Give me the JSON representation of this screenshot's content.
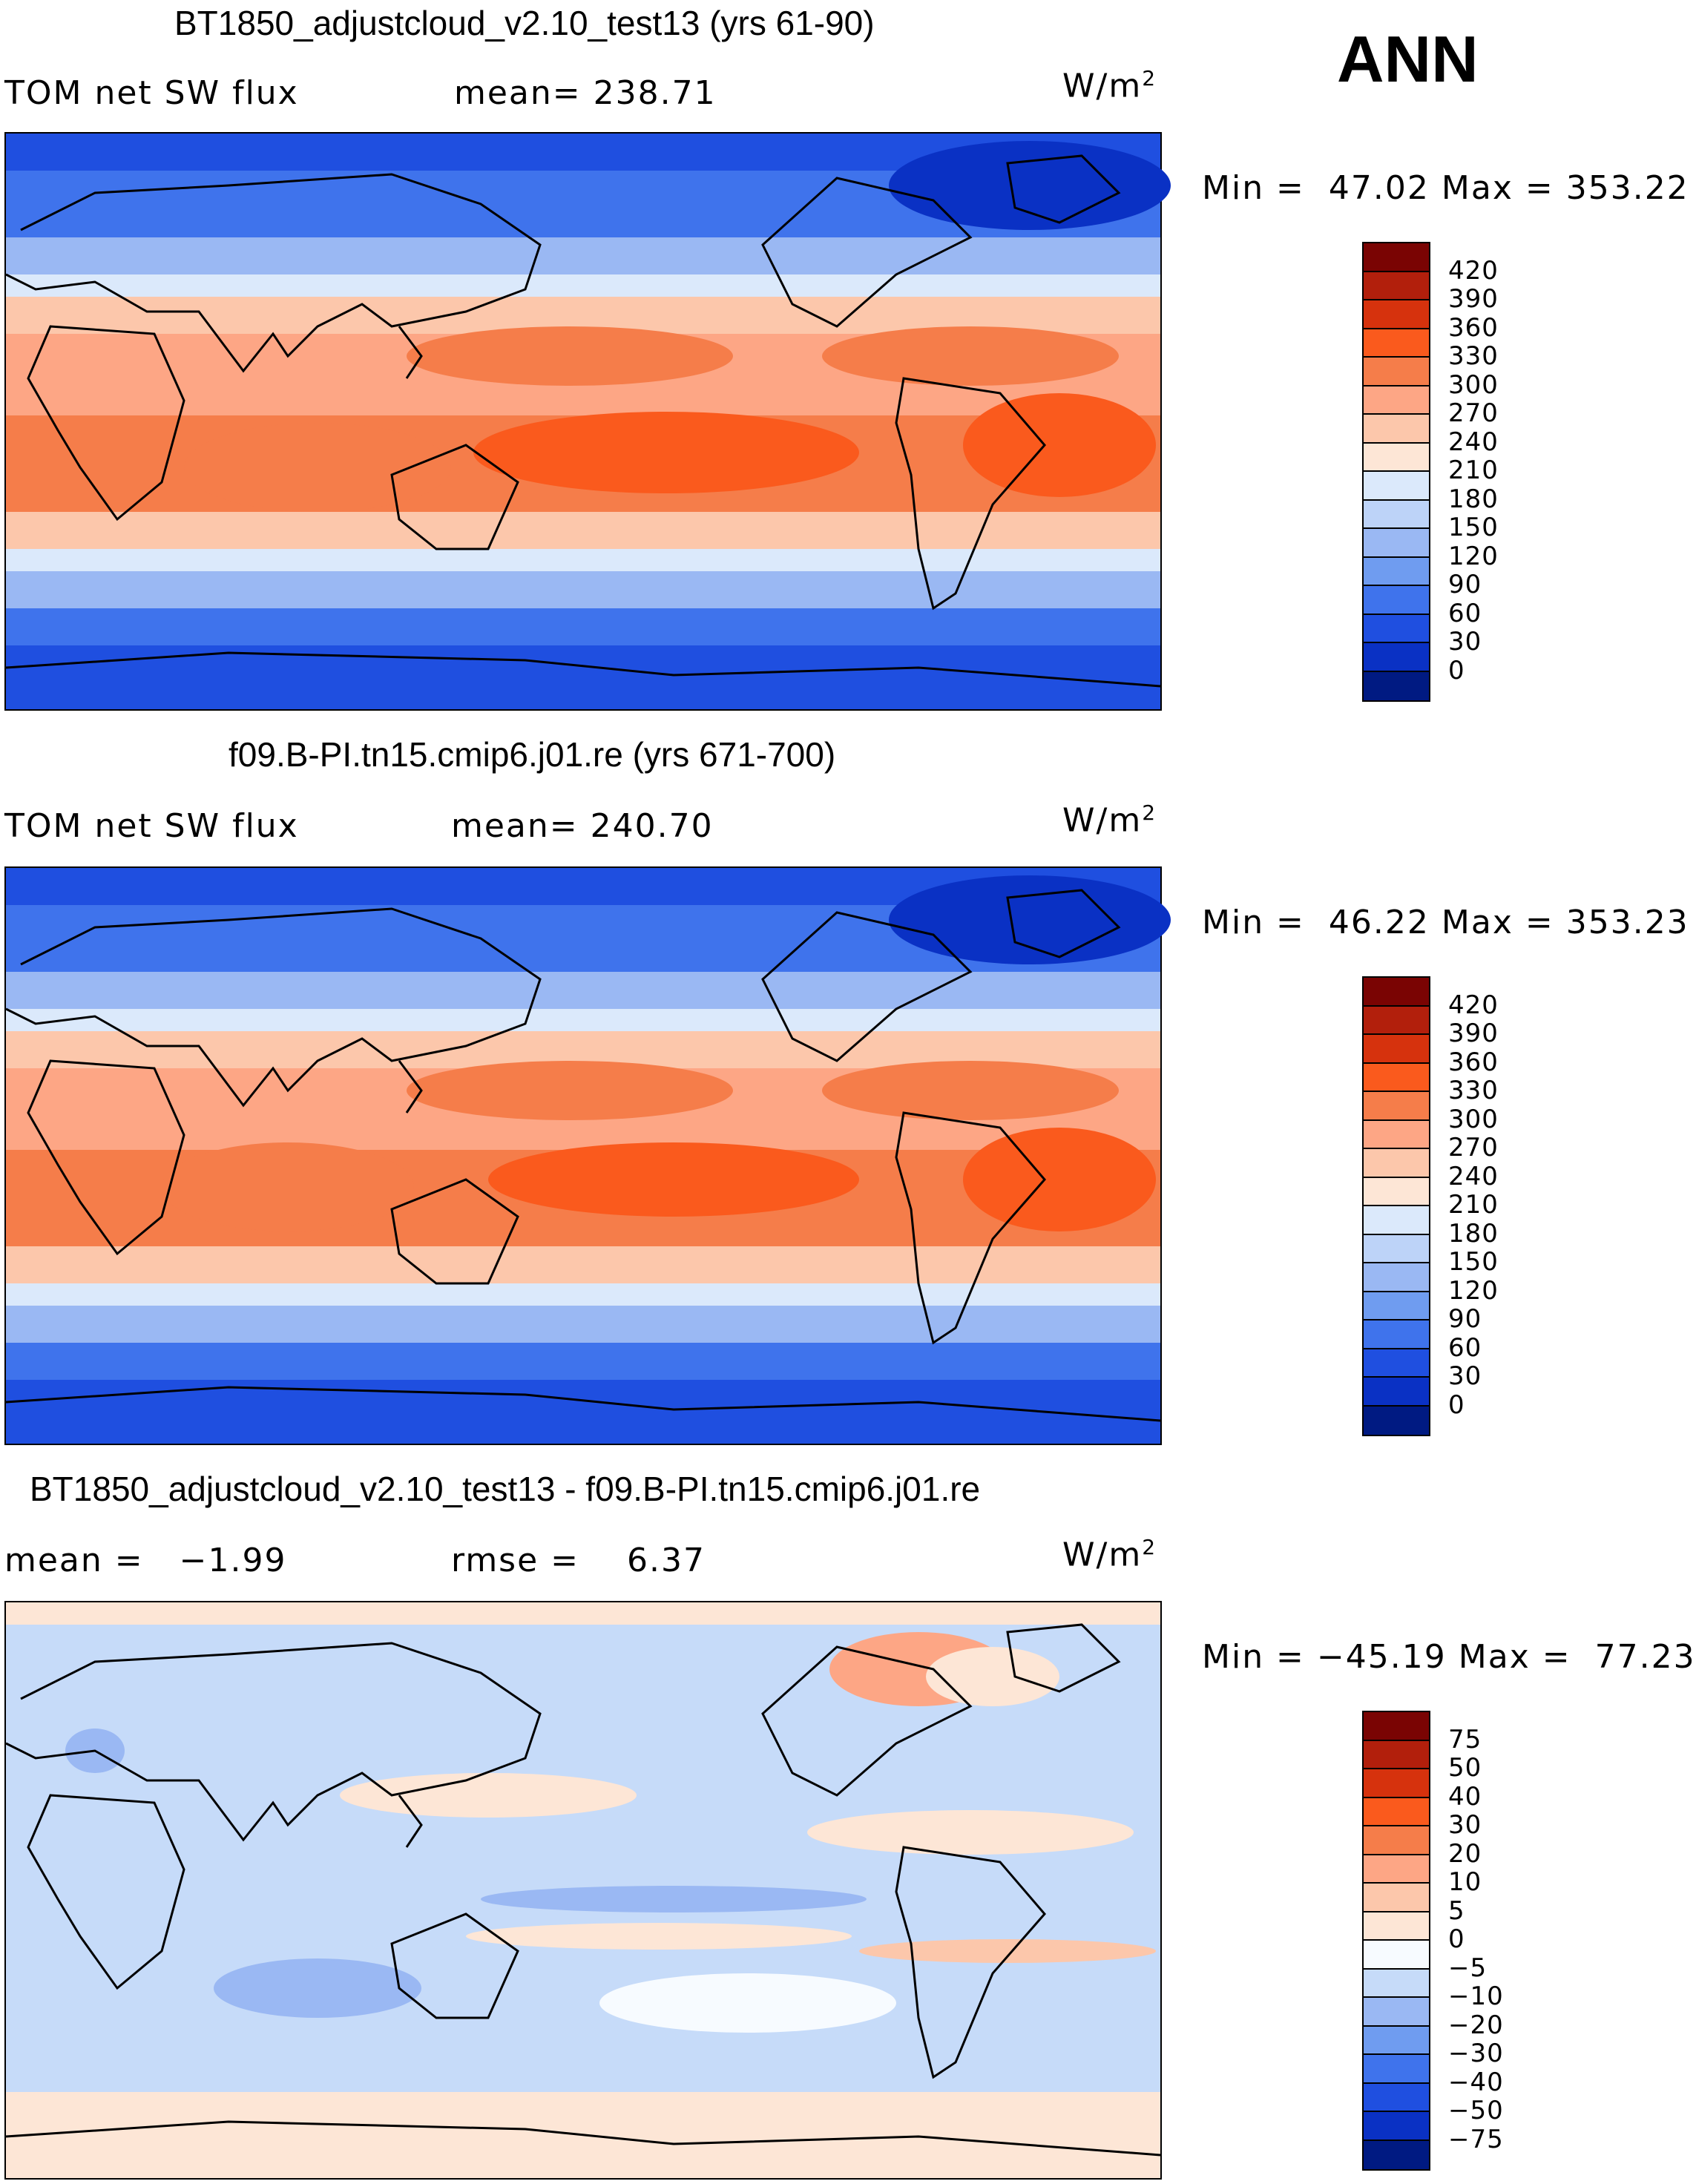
{
  "season": "ANN",
  "units": "W/m",
  "units_sup": "2",
  "panels": [
    {
      "title": "BT1850_adjustcloud_v2.10_test13 (yrs 61-90)",
      "left_label": "TOM net SW flux",
      "stat_label": "mean=",
      "stat_value": "238.71",
      "min_label": "Min =",
      "min_value": "47.02",
      "max_label": "Max =",
      "max_value": "353.22",
      "levels": [
        "420",
        "390",
        "360",
        "330",
        "300",
        "270",
        "240",
        "210",
        "180",
        "150",
        "120",
        "90",
        "60",
        "30",
        "0"
      ],
      "colors": [
        "#7a0403",
        "#b21f0c",
        "#d6320d",
        "#fa5a1d",
        "#f57d4a",
        "#fda685",
        "#fcc7ab",
        "#fde6d6",
        "#dbe9fb",
        "#bdd3f8",
        "#9ab8f3",
        "#6f9cf0",
        "#3f73ec",
        "#1f4fe0",
        "#0a31c4",
        "#001a82"
      ]
    },
    {
      "title": "f09.B-PI.tn15.cmip6.j01.re (yrs 671-700)",
      "left_label": "TOM net SW flux",
      "stat_label": "mean=",
      "stat_value": "240.70",
      "min_label": "Min =",
      "min_value": "46.22",
      "max_label": "Max =",
      "max_value": "353.23",
      "levels": [
        "420",
        "390",
        "360",
        "330",
        "300",
        "270",
        "240",
        "210",
        "180",
        "150",
        "120",
        "90",
        "60",
        "30",
        "0"
      ],
      "colors": [
        "#7a0403",
        "#b21f0c",
        "#d6320d",
        "#fa5a1d",
        "#f57d4a",
        "#fda685",
        "#fcc7ab",
        "#fde6d6",
        "#dbe9fb",
        "#bdd3f8",
        "#9ab8f3",
        "#6f9cf0",
        "#3f73ec",
        "#1f4fe0",
        "#0a31c4",
        "#001a82"
      ]
    },
    {
      "title": "BT1850_adjustcloud_v2.10_test13 - f09.B-PI.tn15.cmip6.j01.re",
      "left_label": "mean =",
      "left_value": "−1.99",
      "stat_label": "rmse =",
      "stat_value": "6.37",
      "min_label": "Min =",
      "min_value": "−45.19",
      "max_label": "Max =",
      "max_value": "77.23",
      "levels": [
        "75",
        "50",
        "40",
        "30",
        "20",
        "10",
        "5",
        "0",
        "−5",
        "−10",
        "−20",
        "−30",
        "−40",
        "−50",
        "−75"
      ],
      "colors": [
        "#7a0403",
        "#b21f0c",
        "#d6320d",
        "#fa5a1d",
        "#f57d4a",
        "#fda685",
        "#fcc7ab",
        "#fde6d6",
        "#f7fbff",
        "#c6dbf9",
        "#9ab8f3",
        "#6f9cf0",
        "#3f73ec",
        "#1f4fe0",
        "#0a31c4",
        "#001a82"
      ]
    }
  ]
}
